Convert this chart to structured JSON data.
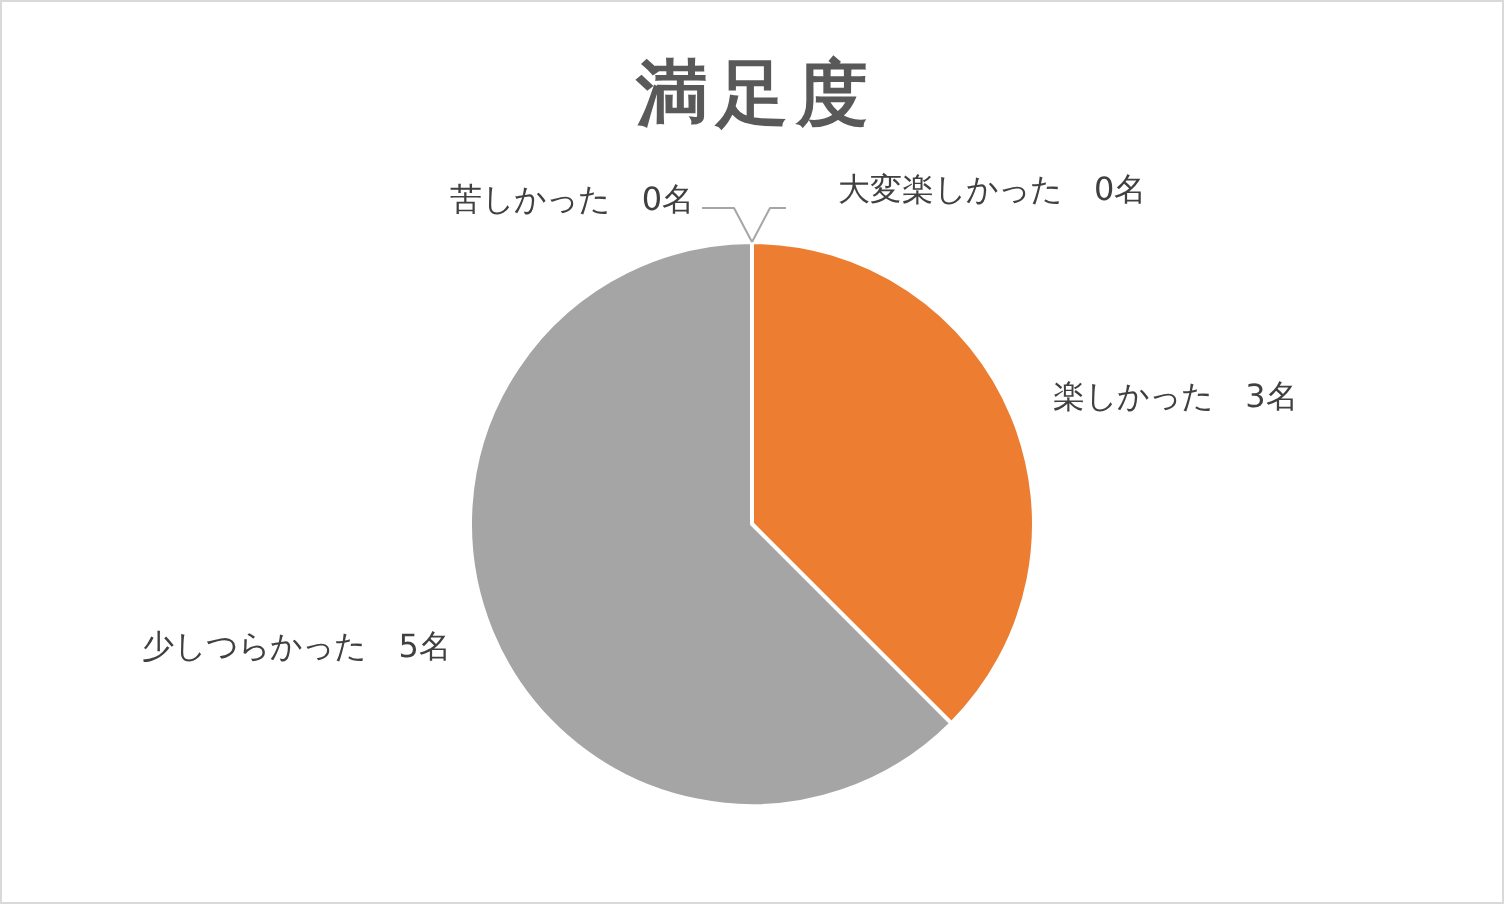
{
  "chart_data": {
    "type": "pie",
    "title": "満足度",
    "categories": [
      "大変楽しかった",
      "楽しかった",
      "少しつらかった",
      "苦しかった"
    ],
    "values": [
      0,
      3,
      5,
      0
    ],
    "colors": [
      null,
      "#ed7d31",
      "#a5a5a5",
      null
    ],
    "value_labels": [
      "0名",
      "3名",
      "5名",
      "0名"
    ],
    "legend": false
  }
}
